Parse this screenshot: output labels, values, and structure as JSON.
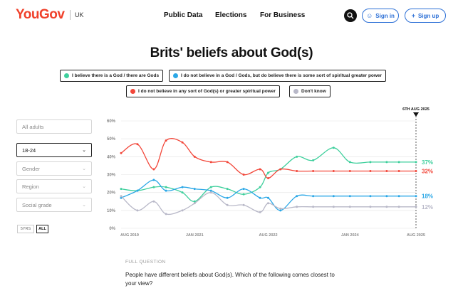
{
  "header": {
    "logo": "YouGov",
    "region": "UK",
    "nav": [
      "Public Data",
      "Elections",
      "For Business"
    ],
    "sign_in": "Sign in",
    "sign_up": "Sign up",
    "brand_color": "#f0412b",
    "accent_color": "#2b6fd6"
  },
  "title": "Brits' beliefs about God(s)",
  "legend": [
    {
      "label": "I believe there is a God / there are Gods",
      "color": "#3ecf9c"
    },
    {
      "label": "I do not believe in a God / Gods, but do believe there is some sort of spiritual greater power",
      "color": "#2aa7e6"
    },
    {
      "label": "I do not believe in any sort of God(s) or greater spiritual power",
      "color": "#f2473a"
    },
    {
      "label": "Don't know",
      "color": "#b8b8c8"
    }
  ],
  "filters": {
    "audience": "All adults",
    "age": "18-24",
    "gender": "Gender",
    "region": "Region",
    "social_grade": "Social grade",
    "ranges": [
      "5YRS",
      "ALL"
    ],
    "active_range": "ALL"
  },
  "chart_data": {
    "type": "line",
    "x": [
      "2019-08",
      "2019-12",
      "2020-04",
      "2020-07",
      "2020-11",
      "2021-02",
      "2021-06",
      "2021-10",
      "2022-02",
      "2022-06",
      "2022-08",
      "2022-11",
      "2023-03",
      "2023-07",
      "2023-12",
      "2024-04",
      "2024-09",
      "2025-01",
      "2025-04",
      "2025-08-06"
    ],
    "x_tick_labels": [
      "AUG 2019",
      "JAN 2021",
      "AUG 2022",
      "JAN 2024",
      "AUG 2025"
    ],
    "x_tick_positions": [
      "2019-08",
      "2021-02",
      "2022-08",
      "2024-04",
      "2025-08-06"
    ],
    "y_tick_labels": [
      "0%",
      "10%",
      "20%",
      "30%",
      "40%",
      "50%",
      "60%"
    ],
    "ylim": [
      0,
      60
    ],
    "grid": true,
    "series": [
      {
        "name": "I believe there is a God / there are Gods",
        "color": "#3ecf9c",
        "values": [
          22,
          21,
          23,
          23,
          20,
          15,
          23,
          22,
          19,
          23,
          31,
          33,
          40,
          38,
          45,
          37,
          37,
          37,
          37,
          37
        ],
        "end_label": "37%"
      },
      {
        "name": "I do not believe in a God / Gods, but do believe there is some sort of spiritual greater power",
        "color": "#2aa7e6",
        "values": [
          17,
          21,
          27,
          21,
          23,
          22,
          21,
          17,
          22,
          17,
          17,
          10,
          18,
          18,
          18,
          18,
          18,
          18,
          18,
          18
        ],
        "end_label": "18%"
      },
      {
        "name": "I do not believe in any sort of God(s) or greater spiritual power",
        "color": "#f2473a",
        "values": [
          42,
          47,
          33,
          49,
          48,
          40,
          37,
          37,
          30,
          33,
          28,
          33,
          32,
          32,
          32,
          32,
          32,
          32,
          32,
          32
        ],
        "end_label": "32%"
      },
      {
        "name": "Don't know",
        "color": "#b8b8c8",
        "values": [
          18,
          10,
          15,
          8,
          10,
          14,
          20,
          13,
          13,
          9,
          14,
          11,
          12,
          12,
          12,
          12,
          12,
          12,
          12,
          12
        ],
        "end_label": "12%"
      }
    ],
    "marker_label": "6TH AUG 2025"
  },
  "question": {
    "label": "FULL QUESTION",
    "text": "People have different beliefs about God(s). Which of the following comes closest to your view?"
  }
}
